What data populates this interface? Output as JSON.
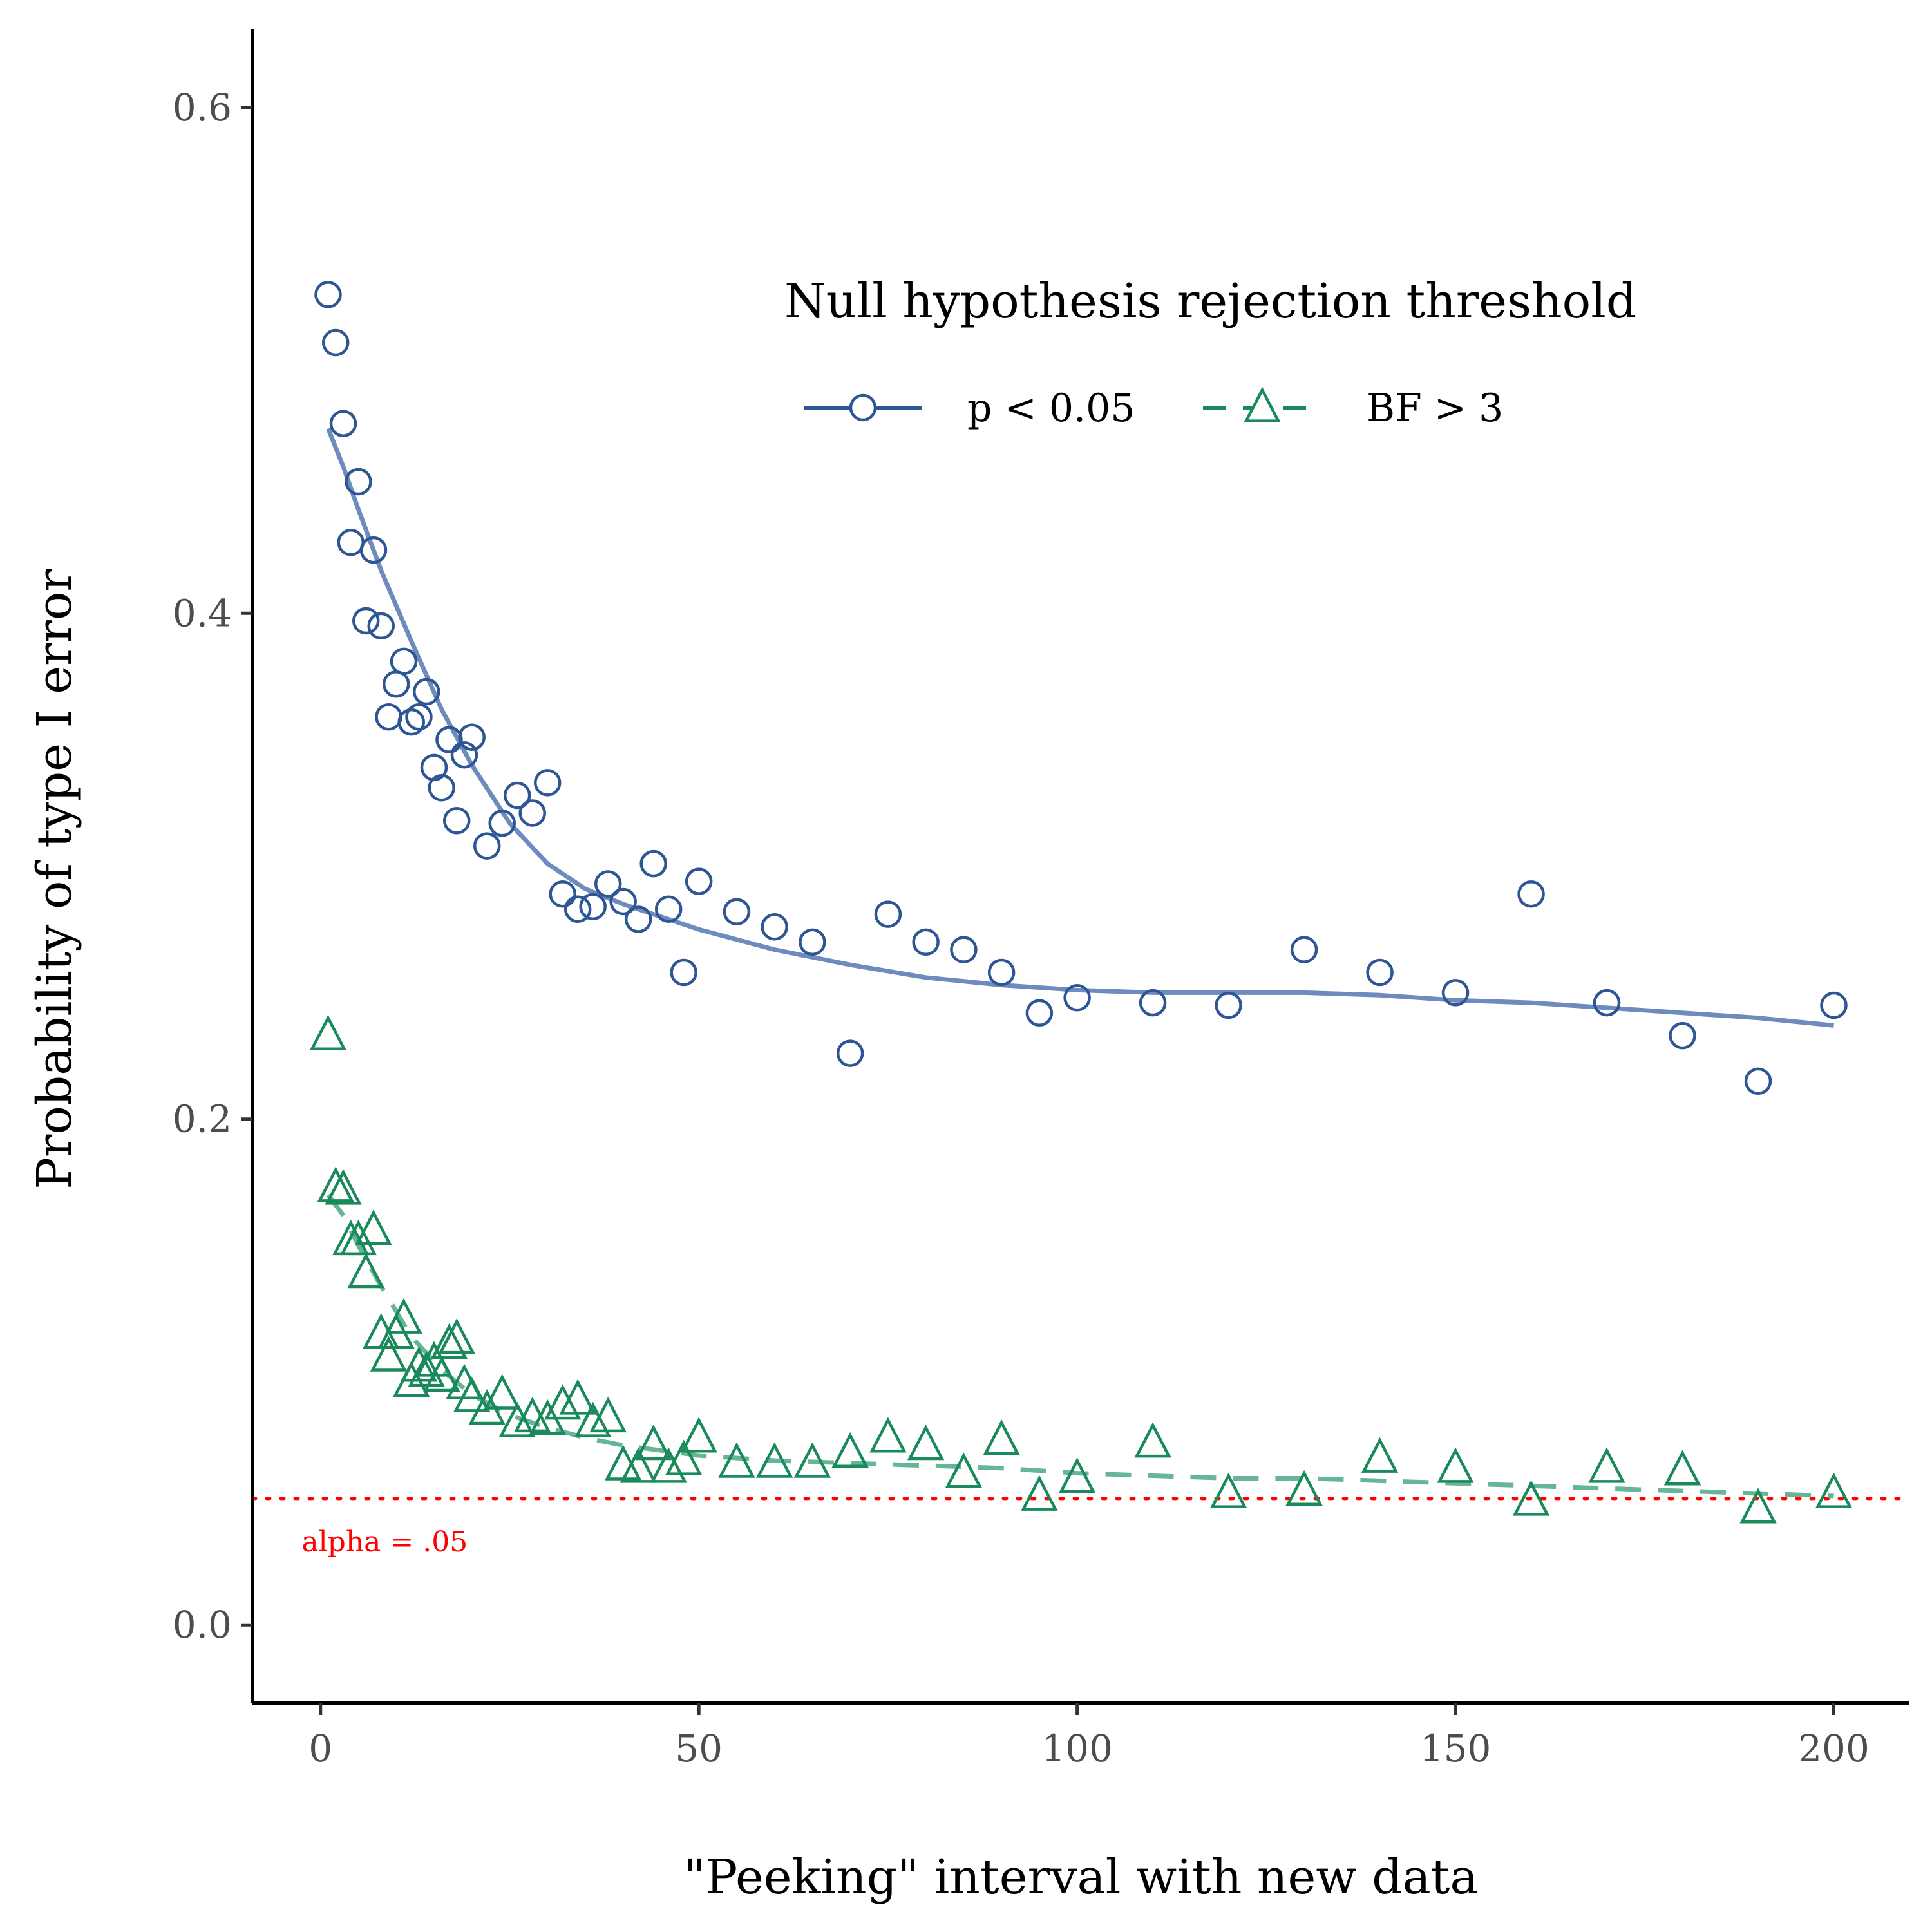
{
  "chart_data": {
    "type": "scatter",
    "xlabel": "\"Peeking\" interval with new data",
    "ylabel": "Probability of type I error",
    "xlim": [
      -9,
      210
    ],
    "ylim": [
      -0.031,
      0.631
    ],
    "xticks": [
      0,
      50,
      100,
      150,
      200
    ],
    "xtick_labels": [
      "0",
      "50",
      "100",
      "150",
      "200"
    ],
    "yticks": [
      0.0,
      0.2,
      0.4,
      0.6
    ],
    "ytick_labels": [
      "0.0",
      "0.2",
      "0.4",
      "0.6"
    ],
    "grid": false,
    "legend": {
      "title": "Null hypothesis rejection threshold",
      "position": "top-right",
      "orientation": "horizontal"
    },
    "reference_line": {
      "y": 0.05,
      "style": "dotted",
      "color": "#ff0000",
      "label": "alpha = .05"
    },
    "series": [
      {
        "name": "p < 0.05",
        "marker": "circle",
        "line_style": "solid",
        "color": "#2e5694",
        "line_color": "#6d8bbd",
        "points": [
          [
            1,
            0.526
          ],
          [
            2,
            0.507
          ],
          [
            3,
            0.475
          ],
          [
            4,
            0.428
          ],
          [
            5,
            0.452
          ],
          [
            6,
            0.397
          ],
          [
            7,
            0.425
          ],
          [
            8,
            0.395
          ],
          [
            9,
            0.359
          ],
          [
            10,
            0.372
          ],
          [
            11,
            0.381
          ],
          [
            12,
            0.357
          ],
          [
            13,
            0.359
          ],
          [
            14,
            0.369
          ],
          [
            15,
            0.339
          ],
          [
            16,
            0.331
          ],
          [
            17,
            0.35
          ],
          [
            18,
            0.318
          ],
          [
            19,
            0.344
          ],
          [
            20,
            0.351
          ],
          [
            22,
            0.308
          ],
          [
            24,
            0.317
          ],
          [
            26,
            0.328
          ],
          [
            28,
            0.321
          ],
          [
            30,
            0.333
          ],
          [
            32,
            0.289
          ],
          [
            34,
            0.283
          ],
          [
            36,
            0.284
          ],
          [
            38,
            0.293
          ],
          [
            40,
            0.286
          ],
          [
            42,
            0.279
          ],
          [
            44,
            0.301
          ],
          [
            46,
            0.283
          ],
          [
            48,
            0.258
          ],
          [
            50,
            0.294
          ],
          [
            55,
            0.282
          ],
          [
            60,
            0.276
          ],
          [
            65,
            0.27
          ],
          [
            70,
            0.226
          ],
          [
            75,
            0.281
          ],
          [
            80,
            0.27
          ],
          [
            85,
            0.267
          ],
          [
            90,
            0.258
          ],
          [
            95,
            0.242
          ],
          [
            100,
            0.248
          ],
          [
            110,
            0.246
          ],
          [
            120,
            0.245
          ],
          [
            130,
            0.267
          ],
          [
            140,
            0.258
          ],
          [
            150,
            0.25
          ],
          [
            160,
            0.289
          ],
          [
            170,
            0.246
          ],
          [
            180,
            0.233
          ],
          [
            190,
            0.215
          ],
          [
            200,
            0.245
          ]
        ],
        "smooth": [
          [
            1,
            0.473
          ],
          [
            3,
            0.458
          ],
          [
            5,
            0.441
          ],
          [
            8,
            0.417
          ],
          [
            12,
            0.389
          ],
          [
            16,
            0.362
          ],
          [
            20,
            0.34
          ],
          [
            25,
            0.317
          ],
          [
            30,
            0.301
          ],
          [
            35,
            0.291
          ],
          [
            40,
            0.285
          ],
          [
            50,
            0.275
          ],
          [
            60,
            0.267
          ],
          [
            70,
            0.261
          ],
          [
            80,
            0.256
          ],
          [
            90,
            0.253
          ],
          [
            100,
            0.251
          ],
          [
            110,
            0.25
          ],
          [
            120,
            0.25
          ],
          [
            130,
            0.25
          ],
          [
            140,
            0.249
          ],
          [
            150,
            0.247
          ],
          [
            160,
            0.246
          ],
          [
            170,
            0.244
          ],
          [
            180,
            0.242
          ],
          [
            190,
            0.24
          ],
          [
            200,
            0.237
          ]
        ]
      },
      {
        "name": "BF > 3",
        "marker": "triangle",
        "line_style": "dashed",
        "color": "#1a8a5a",
        "line_color": "#66b596",
        "points": [
          [
            1,
            0.233
          ],
          [
            2,
            0.173
          ],
          [
            3,
            0.172
          ],
          [
            4,
            0.152
          ],
          [
            5,
            0.152
          ],
          [
            6,
            0.139
          ],
          [
            7,
            0.156
          ],
          [
            8,
            0.115
          ],
          [
            9,
            0.106
          ],
          [
            10,
            0.115
          ],
          [
            11,
            0.121
          ],
          [
            12,
            0.096
          ],
          [
            13,
            0.102
          ],
          [
            14,
            0.1
          ],
          [
            15,
            0.104
          ],
          [
            16,
            0.098
          ],
          [
            17,
            0.111
          ],
          [
            18,
            0.113
          ],
          [
            19,
            0.095
          ],
          [
            20,
            0.09
          ],
          [
            22,
            0.085
          ],
          [
            24,
            0.091
          ],
          [
            26,
            0.08
          ],
          [
            28,
            0.082
          ],
          [
            30,
            0.081
          ],
          [
            32,
            0.087
          ],
          [
            34,
            0.089
          ],
          [
            36,
            0.08
          ],
          [
            38,
            0.082
          ],
          [
            40,
            0.063
          ],
          [
            42,
            0.062
          ],
          [
            44,
            0.071
          ],
          [
            46,
            0.062
          ],
          [
            48,
            0.065
          ],
          [
            50,
            0.074
          ],
          [
            55,
            0.064
          ],
          [
            60,
            0.064
          ],
          [
            65,
            0.064
          ],
          [
            70,
            0.068
          ],
          [
            75,
            0.074
          ],
          [
            80,
            0.071
          ],
          [
            85,
            0.06
          ],
          [
            90,
            0.073
          ],
          [
            95,
            0.051
          ],
          [
            100,
            0.058
          ],
          [
            110,
            0.072
          ],
          [
            120,
            0.052
          ],
          [
            130,
            0.053
          ],
          [
            140,
            0.066
          ],
          [
            150,
            0.062
          ],
          [
            160,
            0.049
          ],
          [
            170,
            0.062
          ],
          [
            180,
            0.061
          ],
          [
            190,
            0.046
          ],
          [
            200,
            0.052
          ]
        ],
        "smooth": [
          [
            1,
            0.17
          ],
          [
            3,
            0.162
          ],
          [
            5,
            0.15
          ],
          [
            8,
            0.134
          ],
          [
            12,
            0.114
          ],
          [
            16,
            0.101
          ],
          [
            20,
            0.091
          ],
          [
            25,
            0.083
          ],
          [
            30,
            0.078
          ],
          [
            35,
            0.074
          ],
          [
            40,
            0.071
          ],
          [
            50,
            0.067
          ],
          [
            60,
            0.065
          ],
          [
            70,
            0.064
          ],
          [
            80,
            0.063
          ],
          [
            90,
            0.062
          ],
          [
            100,
            0.06
          ],
          [
            110,
            0.059
          ],
          [
            120,
            0.058
          ],
          [
            130,
            0.058
          ],
          [
            140,
            0.057
          ],
          [
            150,
            0.056
          ],
          [
            160,
            0.055
          ],
          [
            170,
            0.054
          ],
          [
            180,
            0.053
          ],
          [
            190,
            0.052
          ],
          [
            200,
            0.051
          ]
        ]
      }
    ]
  }
}
